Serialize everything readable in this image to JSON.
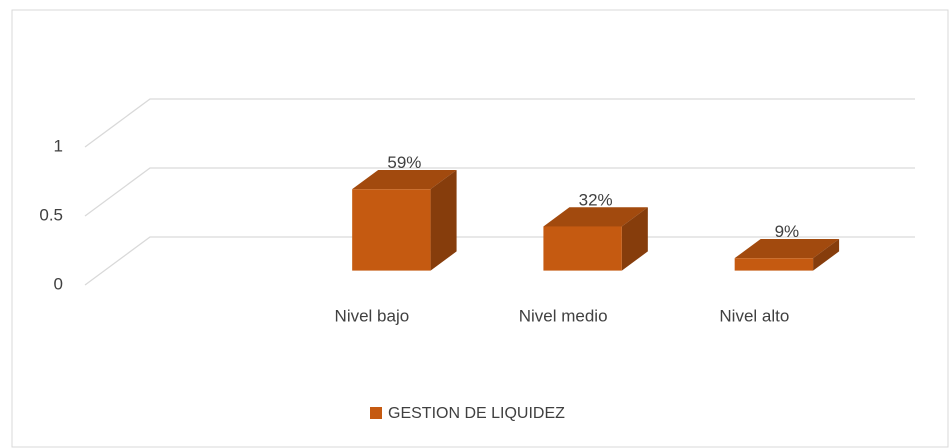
{
  "chart_data": {
    "type": "bar3d",
    "categories": [
      null,
      "Nivel bajo",
      "Nivel medio",
      "Nivel alto"
    ],
    "series": [
      {
        "name": "GESTION DE LIQUIDEZ",
        "color": "#c55a11",
        "values": [
          null,
          0.59,
          0.32,
          0.09
        ],
        "value_labels": [
          null,
          "59%",
          "32%",
          "9%"
        ]
      }
    ],
    "ylim": [
      0,
      1
    ],
    "yticks": [
      0,
      0.5,
      1
    ],
    "grid": true,
    "legend": "bottom"
  }
}
